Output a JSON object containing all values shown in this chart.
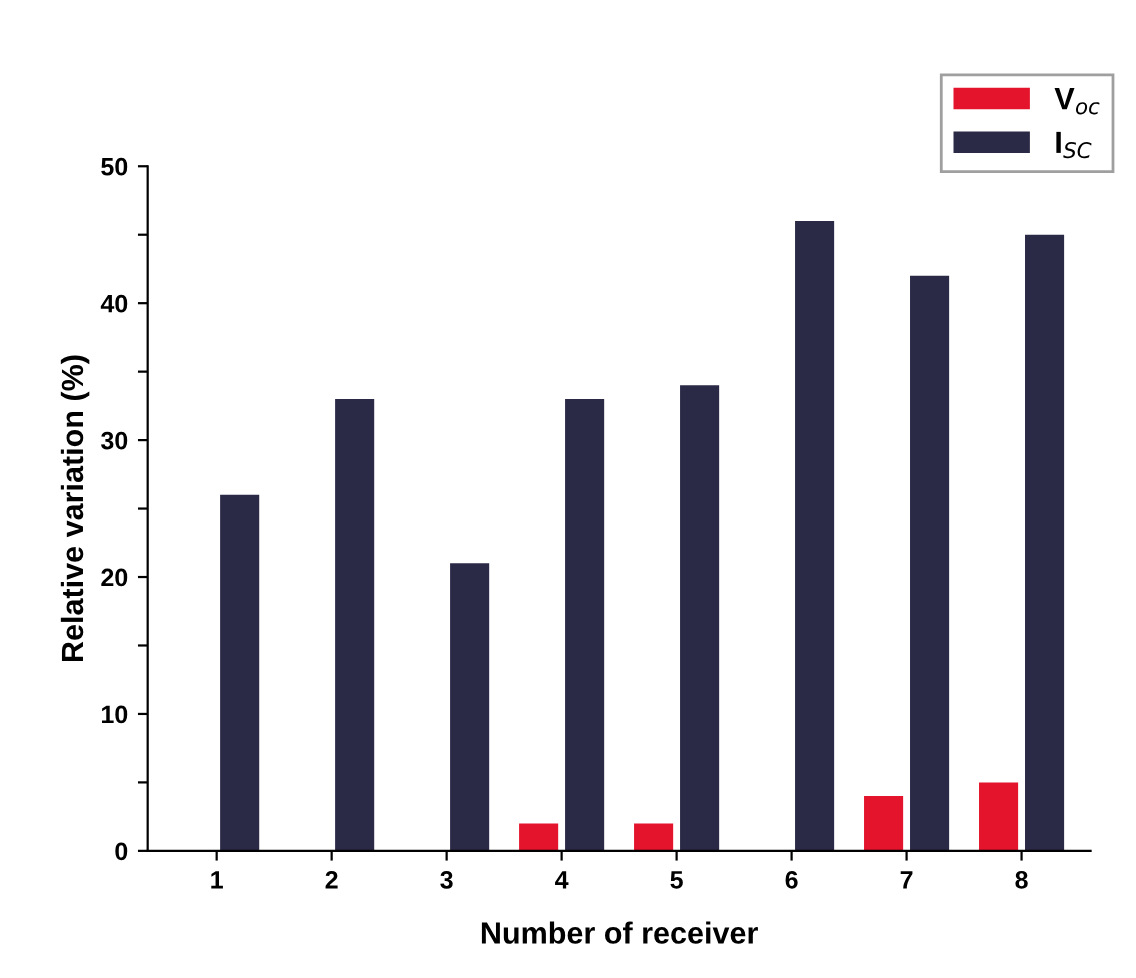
{
  "chart_data": {
    "type": "bar",
    "xlabel": "Number of receiver",
    "ylabel": "Relative variation (%)",
    "categories": [
      "1",
      "2",
      "3",
      "4",
      "5",
      "6",
      "7",
      "8"
    ],
    "series": [
      {
        "name": "V$_{oc}$",
        "color": "#e3142c",
        "values": [
          0,
          0,
          0,
          2,
          2,
          0,
          4,
          5
        ]
      },
      {
        "name": "I$_{SC}$",
        "color": "#2a2946",
        "values": [
          26,
          33,
          21,
          33,
          34,
          46,
          42,
          45
        ]
      }
    ],
    "ylim": [
      0,
      50
    ],
    "yticks": [
      0,
      {
        "value": 5,
        "label": null
      },
      10,
      {
        "value": 15,
        "label": null
      },
      20,
      {
        "value": 25,
        "label": null
      },
      30,
      {
        "value": 35,
        "label": null
      },
      40,
      {
        "value": 45,
        "label": null
      },
      50
    ],
    "grid": false,
    "legend": "top right"
  }
}
